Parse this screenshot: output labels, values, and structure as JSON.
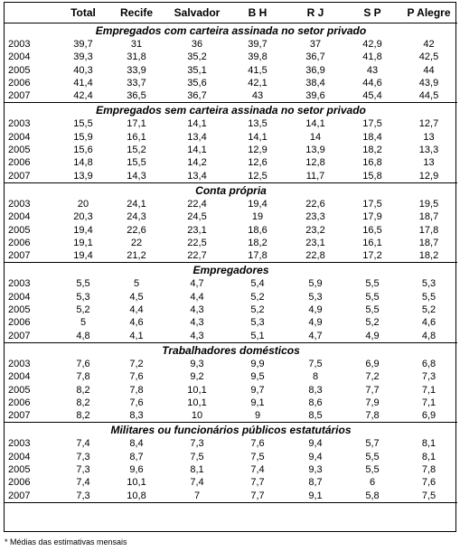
{
  "headers": [
    "",
    "Total",
    "Recife",
    "Salvador",
    "B H",
    "R J",
    "S P",
    "P Alegre"
  ],
  "sections": [
    {
      "title": "Empregados com carteira assinada no setor privado",
      "rows": [
        {
          "year": "2003",
          "values": [
            "39,7",
            "31",
            "36",
            "39,7",
            "37",
            "42,9",
            "42"
          ]
        },
        {
          "year": "2004",
          "values": [
            "39,3",
            "31,8",
            "35,2",
            "39,8",
            "36,7",
            "41,8",
            "42,5"
          ]
        },
        {
          "year": "2005",
          "values": [
            "40,3",
            "33,9",
            "35,1",
            "41,5",
            "36,9",
            "43",
            "44"
          ]
        },
        {
          "year": "2006",
          "values": [
            "41,4",
            "33,7",
            "35,6",
            "42,1",
            "38,4",
            "44,6",
            "43,9"
          ]
        },
        {
          "year": "2007",
          "values": [
            "42,4",
            "36,5",
            "36,7",
            "43",
            "39,6",
            "45,4",
            "44,5"
          ]
        }
      ]
    },
    {
      "title": "Empregados sem carteira assinada no setor privado",
      "rows": [
        {
          "year": "2003",
          "values": [
            "15,5",
            "17,1",
            "14,1",
            "13,5",
            "14,1",
            "17,5",
            "12,7"
          ]
        },
        {
          "year": "2004",
          "values": [
            "15,9",
            "16,1",
            "13,4",
            "14,1",
            "14",
            "18,4",
            "13"
          ]
        },
        {
          "year": "2005",
          "values": [
            "15,6",
            "15,2",
            "14,1",
            "12,9",
            "13,9",
            "18,2",
            "13,3"
          ]
        },
        {
          "year": "2006",
          "values": [
            "14,8",
            "15,5",
            "14,2",
            "12,6",
            "12,8",
            "16,8",
            "13"
          ]
        },
        {
          "year": "2007",
          "values": [
            "13,9",
            "14,3",
            "13,4",
            "12,5",
            "11,7",
            "15,8",
            "12,9"
          ]
        }
      ]
    },
    {
      "title": "Conta própria",
      "rows": [
        {
          "year": "2003",
          "values": [
            "20",
            "24,1",
            "22,4",
            "19,4",
            "22,6",
            "17,5",
            "19,5"
          ]
        },
        {
          "year": "2004",
          "values": [
            "20,3",
            "24,3",
            "24,5",
            "19",
            "23,3",
            "17,9",
            "18,7"
          ]
        },
        {
          "year": "2005",
          "values": [
            "19,4",
            "22,6",
            "23,1",
            "18,6",
            "23,2",
            "16,5",
            "17,8"
          ]
        },
        {
          "year": "2006",
          "values": [
            "19,1",
            "22",
            "22,5",
            "18,2",
            "23,1",
            "16,1",
            "18,7"
          ]
        },
        {
          "year": "2007",
          "values": [
            "19,4",
            "21,2",
            "22,7",
            "17,8",
            "22,8",
            "17,2",
            "18,2"
          ]
        }
      ]
    },
    {
      "title": "Empregadores",
      "rows": [
        {
          "year": "2003",
          "values": [
            "5,5",
            "5",
            "4,7",
            "5,4",
            "5,9",
            "5,5",
            "5,3"
          ]
        },
        {
          "year": "2004",
          "values": [
            "5,3",
            "4,5",
            "4,4",
            "5,2",
            "5,3",
            "5,5",
            "5,5"
          ]
        },
        {
          "year": "2005",
          "values": [
            "5,2",
            "4,4",
            "4,3",
            "5,2",
            "4,9",
            "5,5",
            "5,2"
          ]
        },
        {
          "year": "2006",
          "values": [
            "5",
            "4,6",
            "4,3",
            "5,3",
            "4,9",
            "5,2",
            "4,6"
          ]
        },
        {
          "year": "2007",
          "values": [
            "4,8",
            "4,1",
            "4,3",
            "5,1",
            "4,7",
            "4,9",
            "4,8"
          ]
        }
      ]
    },
    {
      "title": "Trabalhadores domésticos",
      "rows": [
        {
          "year": "2003",
          "values": [
            "7,6",
            "7,2",
            "9,3",
            "9,9",
            "7,5",
            "6,9",
            "6,8"
          ]
        },
        {
          "year": "2004",
          "values": [
            "7,8",
            "7,6",
            "9,2",
            "9,5",
            "8",
            "7,2",
            "7,3"
          ]
        },
        {
          "year": "2005",
          "values": [
            "8,2",
            "7,8",
            "10,1",
            "9,7",
            "8,3",
            "7,7",
            "7,1"
          ]
        },
        {
          "year": "2006",
          "values": [
            "8,2",
            "7,6",
            "10,1",
            "9,1",
            "8,6",
            "7,9",
            "7,1"
          ]
        },
        {
          "year": "2007",
          "values": [
            "8,2",
            "8,3",
            "10",
            "9",
            "8,5",
            "7,8",
            "6,9"
          ]
        }
      ]
    },
    {
      "title": "Militares ou funcionários públicos estatutários",
      "rows": [
        {
          "year": "2003",
          "values": [
            "7,4",
            "8,4",
            "7,3",
            "7,6",
            "9,4",
            "5,7",
            "8,1"
          ]
        },
        {
          "year": "2004",
          "values": [
            "7,3",
            "8,7",
            "7,5",
            "7,5",
            "9,4",
            "5,5",
            "8,1"
          ]
        },
        {
          "year": "2005",
          "values": [
            "7,3",
            "9,6",
            "8,1",
            "7,4",
            "9,3",
            "5,5",
            "7,8"
          ]
        },
        {
          "year": "2006",
          "values": [
            "7,4",
            "10,1",
            "7,4",
            "7,7",
            "8,7",
            "6",
            "7,6"
          ]
        },
        {
          "year": "2007",
          "values": [
            "7,3",
            "10,8",
            "7",
            "7,7",
            "9,1",
            "5,8",
            "7,5"
          ]
        }
      ]
    }
  ],
  "footnote": "* Médias das estimativas mensais"
}
